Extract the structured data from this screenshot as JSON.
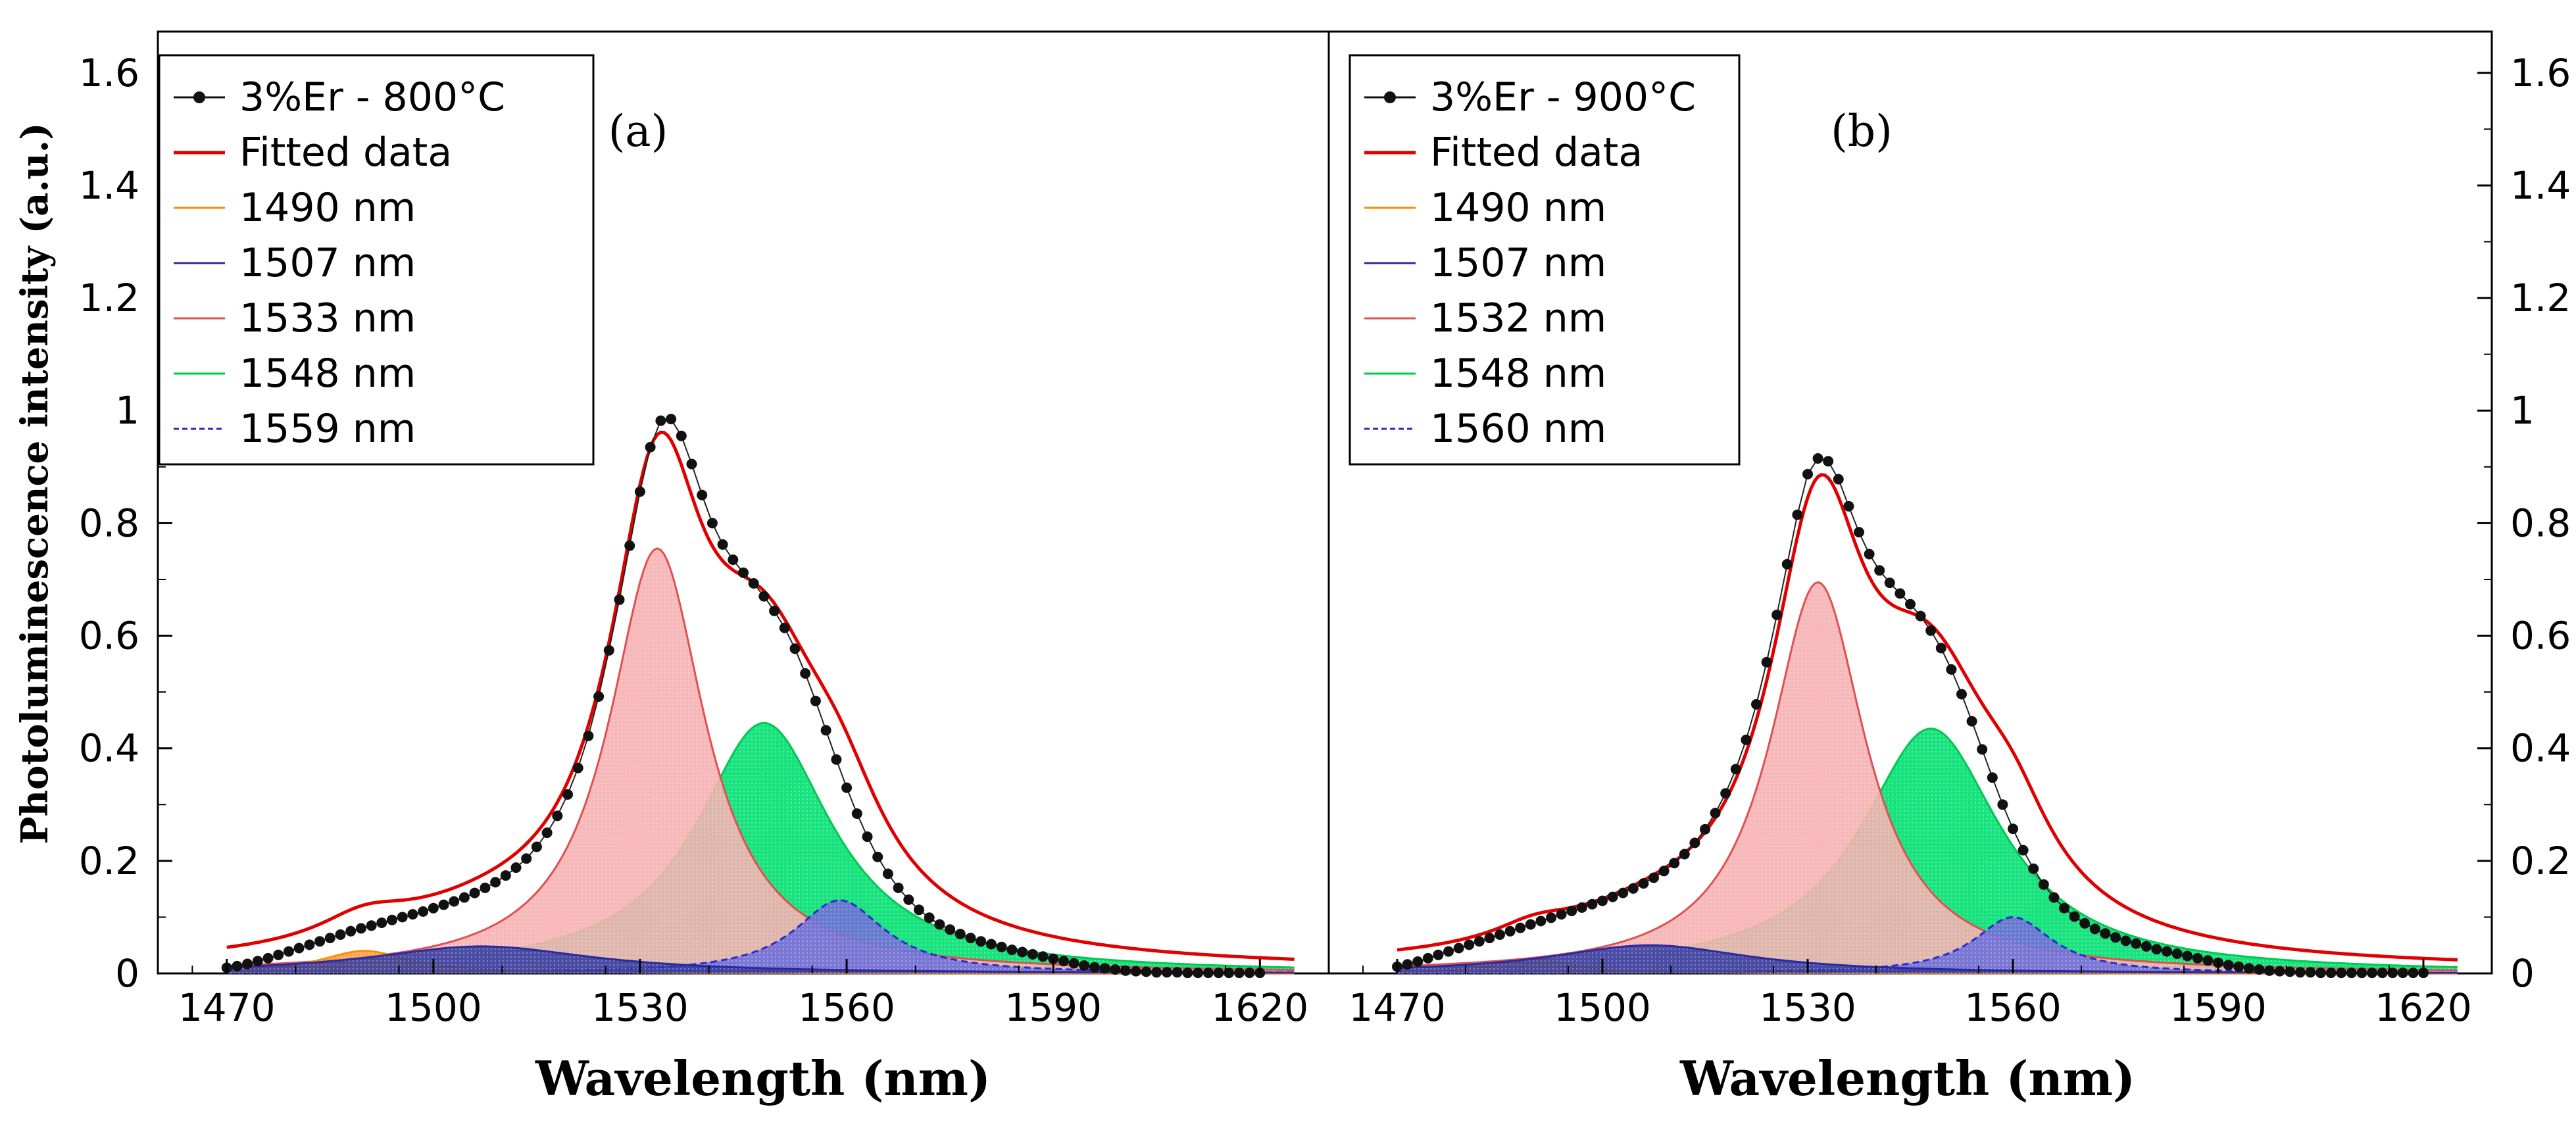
{
  "figure": {
    "y_axis_label": "Photoluminescence intensity (a.u.)",
    "x_axis_label": "Wavelength (nm)",
    "x_ticks": [
      1470,
      1500,
      1530,
      1560,
      1590,
      1620
    ],
    "y_ticks": [
      0,
      0.2,
      0.4,
      0.6,
      0.8,
      1,
      1.2,
      1.4,
      1.6
    ]
  },
  "chart_data": [
    {
      "type": "line",
      "panel_label": "(a)",
      "title": "",
      "xlabel": "Wavelength (nm)",
      "ylabel": "Photoluminescence intensity (a.u.)",
      "xlim": [
        1460,
        1630
      ],
      "ylim": [
        0,
        1.65
      ],
      "grid": false,
      "legend_position": "top-left",
      "legend": [
        "3%Er - 800°C",
        "Fitted data",
        "1490 nm",
        "1507 nm",
        "1533 nm",
        "1548 nm",
        "1559 nm"
      ],
      "measured": {
        "name": "3%Er - 800°C",
        "color": "#111111",
        "x_start": 1470,
        "x_step": 1.5,
        "values": [
          0.01,
          0.013,
          0.017,
          0.022,
          0.027,
          0.033,
          0.039,
          0.045,
          0.051,
          0.057,
          0.063,
          0.069,
          0.075,
          0.08,
          0.085,
          0.09,
          0.095,
          0.1,
          0.105,
          0.11,
          0.116,
          0.122,
          0.128,
          0.135,
          0.143,
          0.152,
          0.162,
          0.174,
          0.188,
          0.204,
          0.225,
          0.25,
          0.28,
          0.318,
          0.365,
          0.422,
          0.492,
          0.574,
          0.664,
          0.76,
          0.856,
          0.935,
          0.982,
          0.985,
          0.955,
          0.905,
          0.85,
          0.8,
          0.762,
          0.735,
          0.712,
          0.693,
          0.67,
          0.644,
          0.614,
          0.577,
          0.533,
          0.484,
          0.432,
          0.38,
          0.33,
          0.284,
          0.243,
          0.207,
          0.177,
          0.152,
          0.131,
          0.113,
          0.099,
          0.087,
          0.078,
          0.07,
          0.063,
          0.057,
          0.052,
          0.047,
          0.042,
          0.038,
          0.034,
          0.03,
          0.026,
          0.022,
          0.018,
          0.014,
          0.011,
          0.009,
          0.007,
          0.005,
          0.004,
          0.003,
          0.002,
          0.002,
          0.002,
          0.001,
          0.001,
          0.001,
          0.001,
          0.001,
          0.001,
          0.001,
          0.001
        ]
      },
      "series": [
        {
          "name": "Fitted data",
          "color": "#e00000",
          "role": "fit",
          "values_from": "sum",
          "offset": 0.005
        },
        {
          "name": "1490 nm",
          "color": "#ff8c00",
          "fill": "#f5a04a",
          "center": 1490,
          "amplitude": 0.04,
          "width": 8
        },
        {
          "name": "1507 nm",
          "color": "#2a2aa0",
          "fill": "#2f3aa0",
          "center": 1507,
          "amplitude": 0.048,
          "width": 20
        },
        {
          "name": "1533 nm",
          "color": "#e05050",
          "fill": "#f5b0b0",
          "center": 1532.5,
          "amplitude": 0.755,
          "width": 8.5
        },
        {
          "name": "1548 nm",
          "color": "#00c850",
          "fill": "#00e070",
          "center": 1548,
          "amplitude": 0.445,
          "width": 12
        },
        {
          "name": "1559 nm",
          "color": "#2a2ad0",
          "fill": "#7070d8",
          "center": 1559,
          "amplitude": 0.13,
          "width": 8
        }
      ]
    },
    {
      "type": "line",
      "panel_label": "(b)",
      "title": "",
      "xlabel": "Wavelength (nm)",
      "ylabel": "",
      "xlim": [
        1460,
        1630
      ],
      "ylim": [
        0,
        1.65
      ],
      "grid": false,
      "legend_position": "top-left",
      "legend": [
        "3%Er - 900°C",
        "Fitted data",
        "1490 nm",
        "1507 nm",
        "1532 nm",
        "1548 nm",
        "1560 nm"
      ],
      "measured": {
        "name": "3%Er - 900°C",
        "color": "#111111",
        "x_start": 1470,
        "x_step": 1.5,
        "values": [
          0.012,
          0.016,
          0.021,
          0.027,
          0.033,
          0.039,
          0.045,
          0.051,
          0.057,
          0.063,
          0.069,
          0.075,
          0.081,
          0.087,
          0.093,
          0.099,
          0.105,
          0.111,
          0.117,
          0.123,
          0.129,
          0.136,
          0.143,
          0.151,
          0.16,
          0.17,
          0.182,
          0.196,
          0.212,
          0.232,
          0.256,
          0.285,
          0.32,
          0.363,
          0.415,
          0.478,
          0.553,
          0.637,
          0.727,
          0.815,
          0.887,
          0.915,
          0.91,
          0.878,
          0.83,
          0.784,
          0.745,
          0.716,
          0.694,
          0.675,
          0.656,
          0.635,
          0.609,
          0.578,
          0.54,
          0.496,
          0.448,
          0.398,
          0.348,
          0.3,
          0.257,
          0.219,
          0.186,
          0.158,
          0.135,
          0.116,
          0.101,
          0.089,
          0.079,
          0.071,
          0.064,
          0.058,
          0.053,
          0.048,
          0.043,
          0.039,
          0.035,
          0.031,
          0.027,
          0.023,
          0.019,
          0.015,
          0.012,
          0.009,
          0.007,
          0.005,
          0.004,
          0.003,
          0.002,
          0.002,
          0.001,
          0.001,
          0.001,
          0.001,
          0.001,
          0.001,
          0.001,
          0.001,
          0.001,
          0.001,
          0.001
        ]
      },
      "series": [
        {
          "name": "Fitted data",
          "color": "#e00000",
          "role": "fit",
          "values_from": "sum",
          "offset": 0.005
        },
        {
          "name": "1490 nm",
          "color": "#ff8c00",
          "fill": "#f5a04a",
          "center": 1490,
          "amplitude": 0.025,
          "width": 7
        },
        {
          "name": "1507 nm",
          "color": "#2a2aa0",
          "fill": "#2f3aa0",
          "center": 1507,
          "amplitude": 0.05,
          "width": 18
        },
        {
          "name": "1532 nm",
          "color": "#e05050",
          "fill": "#f5b0b0",
          "center": 1531.5,
          "amplitude": 0.695,
          "width": 8.5
        },
        {
          "name": "1548 nm",
          "color": "#00c850",
          "fill": "#00e070",
          "center": 1548,
          "amplitude": 0.435,
          "width": 12.5
        },
        {
          "name": "1560 nm",
          "color": "#2a2ad0",
          "fill": "#7070d8",
          "center": 1560,
          "amplitude": 0.1,
          "width": 7
        }
      ]
    }
  ]
}
